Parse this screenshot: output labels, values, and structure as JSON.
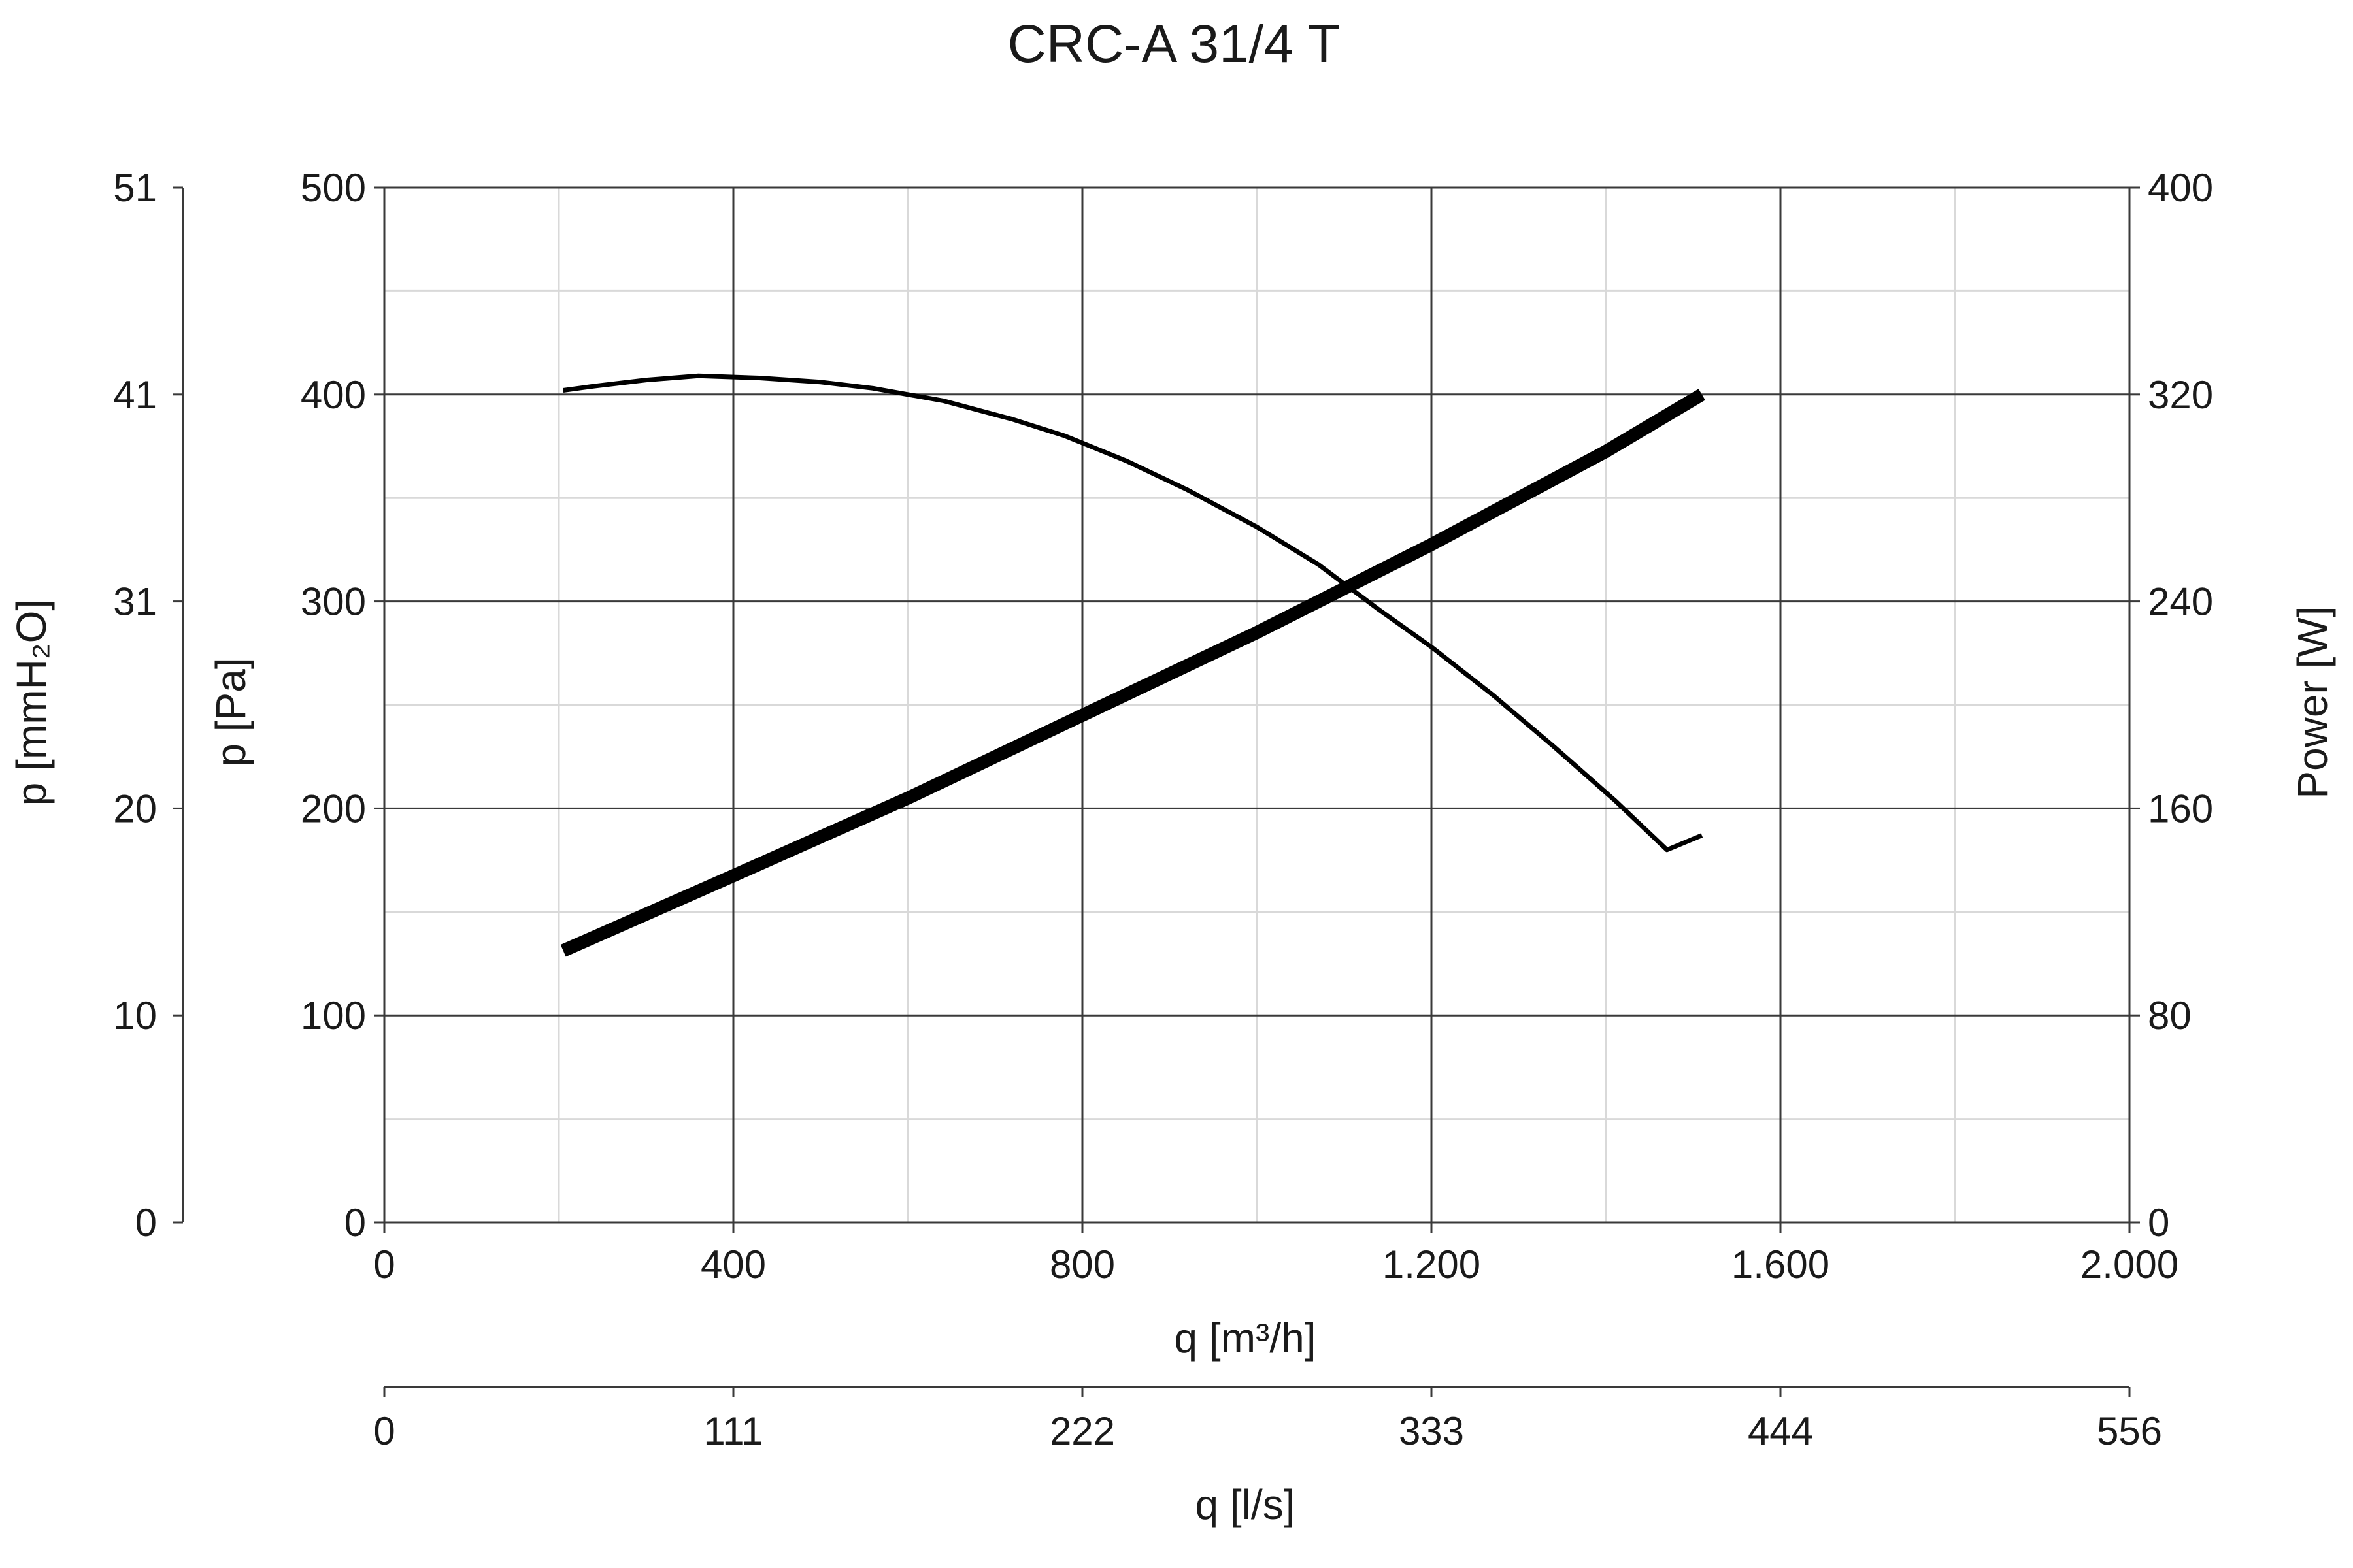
{
  "chart_data": {
    "type": "line",
    "title": "CRC-A 31/4 T",
    "x_axis": {
      "label": "q [m³/h]",
      "range": [
        0,
        2000
      ],
      "ticks": [
        0,
        400,
        800,
        1200,
        1600,
        2000
      ],
      "tick_labels": [
        "0",
        "400",
        "800",
        "1.200",
        "1.600",
        "2.000"
      ]
    },
    "x_axis_secondary": {
      "label": "q [l/s]",
      "range": [
        0,
        556
      ],
      "ticks": [
        0,
        111,
        222,
        333,
        444,
        556
      ],
      "tick_labels": [
        "0",
        "111",
        "222",
        "333",
        "444",
        "556"
      ]
    },
    "y_axis": {
      "label": "p [Pa]",
      "range": [
        0,
        500
      ],
      "ticks": [
        0,
        100,
        200,
        300,
        400,
        500
      ],
      "tick_labels": [
        "0",
        "100",
        "200",
        "300",
        "400",
        "500"
      ]
    },
    "y_axis_outer": {
      "label": "p [mmH₂O]",
      "range": [
        0,
        51
      ],
      "ticks": [
        0,
        10,
        20,
        31,
        41,
        51
      ],
      "tick_labels": [
        "0",
        "10",
        "20",
        "31",
        "41",
        "51"
      ]
    },
    "y_axis_right": {
      "label": "Power [W]",
      "range": [
        0,
        400
      ],
      "ticks": [
        0,
        80,
        160,
        240,
        320,
        400
      ],
      "tick_labels": [
        "0",
        "80",
        "160",
        "240",
        "320",
        "400"
      ]
    },
    "grid": true,
    "series": [
      {
        "axis": "pressure",
        "x": [
          205,
          240,
          300,
          360,
          430,
          500,
          560,
          640,
          720,
          780,
          850,
          920,
          1000,
          1070,
          1140,
          1200,
          1270,
          1340,
          1410,
          1470,
          1510
        ],
        "y": [
          402,
          404,
          407,
          409,
          408,
          406,
          403,
          397,
          388,
          380,
          368,
          354,
          336,
          318,
          296,
          278,
          255,
          230,
          204,
          180,
          187
        ]
      },
      {
        "axis": "power",
        "x": [
          205,
          400,
          600,
          800,
          1000,
          1100,
          1200,
          1400,
          1510
        ],
        "y": [
          105,
          134,
          164,
          196,
          228,
          245,
          262,
          298,
          320
        ]
      }
    ]
  }
}
